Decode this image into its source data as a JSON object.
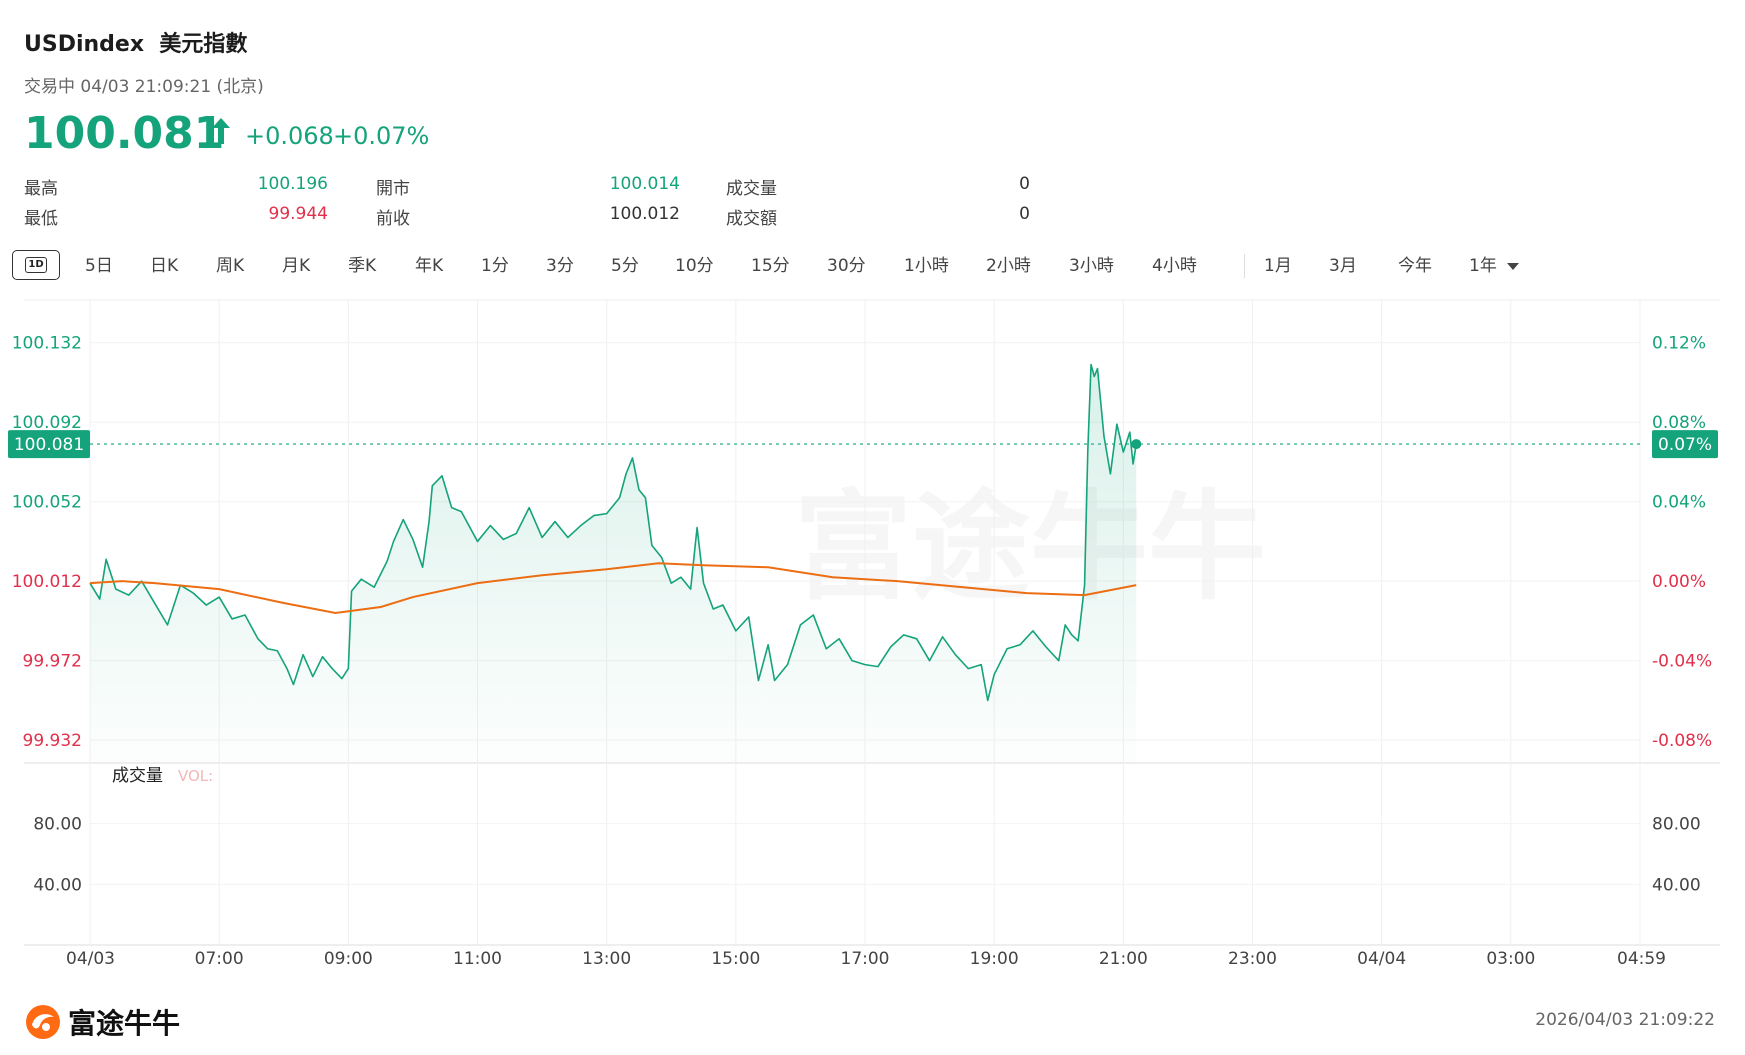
{
  "header": {
    "symbol": "USDindex",
    "name": "美元指數",
    "status": "交易中 04/03 21:09:21 (北京)",
    "price": "100.081",
    "change": "+0.068",
    "change_pct": "+0.07%"
  },
  "stats": [
    {
      "label": "最高",
      "value": "100.196",
      "color": "#14a37a"
    },
    {
      "label": "最低",
      "value": "99.944",
      "color": "#e0304b"
    },
    {
      "label": "開市",
      "value": "100.014",
      "color": "#14a37a"
    },
    {
      "label": "前收",
      "value": "100.012",
      "color": "#333333"
    },
    {
      "label": "成交量",
      "value": "0",
      "color": "#333333"
    },
    {
      "label": "成交額",
      "value": "0",
      "color": "#333333"
    }
  ],
  "tabs": {
    "active": "1D",
    "intraday": [
      "5日",
      "日K",
      "周K",
      "月K",
      "季K",
      "年K",
      "1分",
      "3分",
      "5分",
      "10分",
      "15分",
      "30分",
      "1小時",
      "2小時",
      "3小時",
      "4小時"
    ],
    "ranges": [
      "1月",
      "3月",
      "今年",
      "1年"
    ]
  },
  "watermark": "富途牛牛",
  "footer": {
    "logo_text": "富途牛牛",
    "timestamp": "2026/04/03 21:09:22"
  },
  "chart_data": {
    "type": "line",
    "prev_close": 100.012,
    "last_price": 100.081,
    "last_pct": "0.07%",
    "y_ticks": [
      "100.132",
      "100.092",
      "100.052",
      "100.012",
      "99.972",
      "99.932"
    ],
    "y_values": [
      100.132,
      100.092,
      100.052,
      100.012,
      99.972,
      99.932
    ],
    "pct_ticks": [
      "0.12%",
      "0.08%",
      "0.04%",
      "0.00%",
      "-0.04%",
      "-0.08%"
    ],
    "ylim": [
      99.9205,
      100.1535
    ],
    "x_ticks": [
      "04/03",
      "07:00",
      "09:00",
      "11:00",
      "13:00",
      "15:00",
      "17:00",
      "19:00",
      "21:00",
      "23:00",
      "04/04",
      "03:00",
      "04:59"
    ],
    "x_tick_hours": [
      0,
      2,
      4,
      6,
      8,
      10,
      12,
      14,
      16,
      18,
      20,
      22,
      24
    ],
    "x_start": "05:00",
    "price_series": {
      "name": "Price",
      "color": "#14a37a",
      "points": [
        [
          0,
          100.011
        ],
        [
          0.15,
          100.003
        ],
        [
          0.25,
          100.023
        ],
        [
          0.4,
          100.008
        ],
        [
          0.6,
          100.005
        ],
        [
          0.8,
          100.012
        ],
        [
          1.0,
          100.001
        ],
        [
          1.2,
          99.99
        ],
        [
          1.4,
          100.01
        ],
        [
          1.6,
          100.006
        ],
        [
          1.8,
          100.0
        ],
        [
          2.0,
          100.004
        ],
        [
          2.2,
          99.993
        ],
        [
          2.4,
          99.995
        ],
        [
          2.6,
          99.983
        ],
        [
          2.75,
          99.978
        ],
        [
          2.9,
          99.977
        ],
        [
          3.05,
          99.968
        ],
        [
          3.15,
          99.96
        ],
        [
          3.3,
          99.975
        ],
        [
          3.45,
          99.964
        ],
        [
          3.6,
          99.974
        ],
        [
          3.75,
          99.968
        ],
        [
          3.9,
          99.963
        ],
        [
          4.0,
          99.968
        ],
        [
          4.05,
          100.007
        ],
        [
          4.2,
          100.013
        ],
        [
          4.4,
          100.009
        ],
        [
          4.6,
          100.022
        ],
        [
          4.7,
          100.032
        ],
        [
          4.85,
          100.043
        ],
        [
          5.0,
          100.033
        ],
        [
          5.15,
          100.019
        ],
        [
          5.25,
          100.042
        ],
        [
          5.3,
          100.06
        ],
        [
          5.45,
          100.065
        ],
        [
          5.6,
          100.049
        ],
        [
          5.75,
          100.047
        ],
        [
          6.0,
          100.032
        ],
        [
          6.2,
          100.04
        ],
        [
          6.4,
          100.033
        ],
        [
          6.6,
          100.036
        ],
        [
          6.8,
          100.049
        ],
        [
          7.0,
          100.034
        ],
        [
          7.2,
          100.042
        ],
        [
          7.4,
          100.034
        ],
        [
          7.6,
          100.04
        ],
        [
          7.8,
          100.045
        ],
        [
          8.0,
          100.046
        ],
        [
          8.2,
          100.054
        ],
        [
          8.3,
          100.066
        ],
        [
          8.4,
          100.074
        ],
        [
          8.5,
          100.058
        ],
        [
          8.6,
          100.054
        ],
        [
          8.7,
          100.03
        ],
        [
          8.85,
          100.024
        ],
        [
          9.0,
          100.011
        ],
        [
          9.15,
          100.014
        ],
        [
          9.3,
          100.008
        ],
        [
          9.4,
          100.039
        ],
        [
          9.5,
          100.011
        ],
        [
          9.65,
          99.998
        ],
        [
          9.8,
          100.0
        ],
        [
          10.0,
          99.987
        ],
        [
          10.2,
          99.994
        ],
        [
          10.35,
          99.962
        ],
        [
          10.5,
          99.98
        ],
        [
          10.6,
          99.962
        ],
        [
          10.8,
          99.97
        ],
        [
          11.0,
          99.99
        ],
        [
          11.2,
          99.995
        ],
        [
          11.4,
          99.978
        ],
        [
          11.6,
          99.983
        ],
        [
          11.8,
          99.972
        ],
        [
          12.0,
          99.97
        ],
        [
          12.2,
          99.969
        ],
        [
          12.4,
          99.979
        ],
        [
          12.6,
          99.985
        ],
        [
          12.8,
          99.983
        ],
        [
          13.0,
          99.972
        ],
        [
          13.2,
          99.984
        ],
        [
          13.4,
          99.975
        ],
        [
          13.6,
          99.968
        ],
        [
          13.8,
          99.97
        ],
        [
          13.9,
          99.952
        ],
        [
          14.0,
          99.965
        ],
        [
          14.2,
          99.978
        ],
        [
          14.4,
          99.98
        ],
        [
          14.6,
          99.987
        ],
        [
          14.8,
          99.979
        ],
        [
          15.0,
          99.972
        ],
        [
          15.1,
          99.99
        ],
        [
          15.2,
          99.985
        ],
        [
          15.3,
          99.982
        ],
        [
          15.4,
          100.01
        ],
        [
          15.45,
          100.078
        ],
        [
          15.5,
          100.121
        ],
        [
          15.55,
          100.115
        ],
        [
          15.6,
          100.119
        ],
        [
          15.65,
          100.102
        ],
        [
          15.7,
          100.085
        ],
        [
          15.8,
          100.066
        ],
        [
          15.9,
          100.091
        ],
        [
          16.0,
          100.077
        ],
        [
          16.1,
          100.087
        ],
        [
          16.15,
          100.071
        ],
        [
          16.2,
          100.081
        ]
      ]
    },
    "avg_series": {
      "name": "Avg",
      "color": "#ec6d12",
      "points": [
        [
          0,
          100.011
        ],
        [
          0.5,
          100.012
        ],
        [
          1.0,
          100.011
        ],
        [
          2.0,
          100.008
        ],
        [
          3.0,
          100.001
        ],
        [
          3.8,
          99.996
        ],
        [
          4.5,
          99.999
        ],
        [
          5.0,
          100.004
        ],
        [
          6.0,
          100.011
        ],
        [
          7.0,
          100.015
        ],
        [
          8.0,
          100.018
        ],
        [
          8.8,
          100.021
        ],
        [
          9.5,
          100.02
        ],
        [
          10.5,
          100.019
        ],
        [
          11.5,
          100.014
        ],
        [
          12.5,
          100.012
        ],
        [
          13.5,
          100.009
        ],
        [
          14.5,
          100.006
        ],
        [
          15.4,
          100.005
        ],
        [
          16.2,
          100.01
        ]
      ]
    },
    "volume": {
      "label": "成交量",
      "vol_label": "VOL:",
      "y_ticks": [
        "80.00",
        "40.00"
      ],
      "y_values": [
        80,
        40
      ],
      "ylim": [
        0,
        120
      ],
      "values": []
    }
  }
}
